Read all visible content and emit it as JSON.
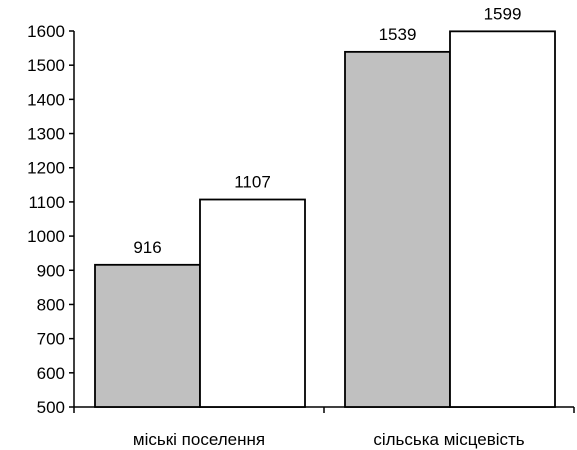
{
  "chart_data": {
    "type": "bar",
    "categories": [
      "міські поселення",
      "сільська місцевість"
    ],
    "series": [
      {
        "values": [
          916,
          1539
        ],
        "color": "#c0c0c0"
      },
      {
        "values": [
          1107,
          1599
        ],
        "color": "#ffffff"
      }
    ],
    "title": "",
    "xlabel": "",
    "ylabel": "",
    "ylim": [
      500,
      1600
    ],
    "yticks": [
      500,
      600,
      700,
      800,
      900,
      1000,
      1100,
      1200,
      1300,
      1400,
      1500,
      1600
    ],
    "grid": false,
    "legend": "none",
    "data_labels": true
  }
}
